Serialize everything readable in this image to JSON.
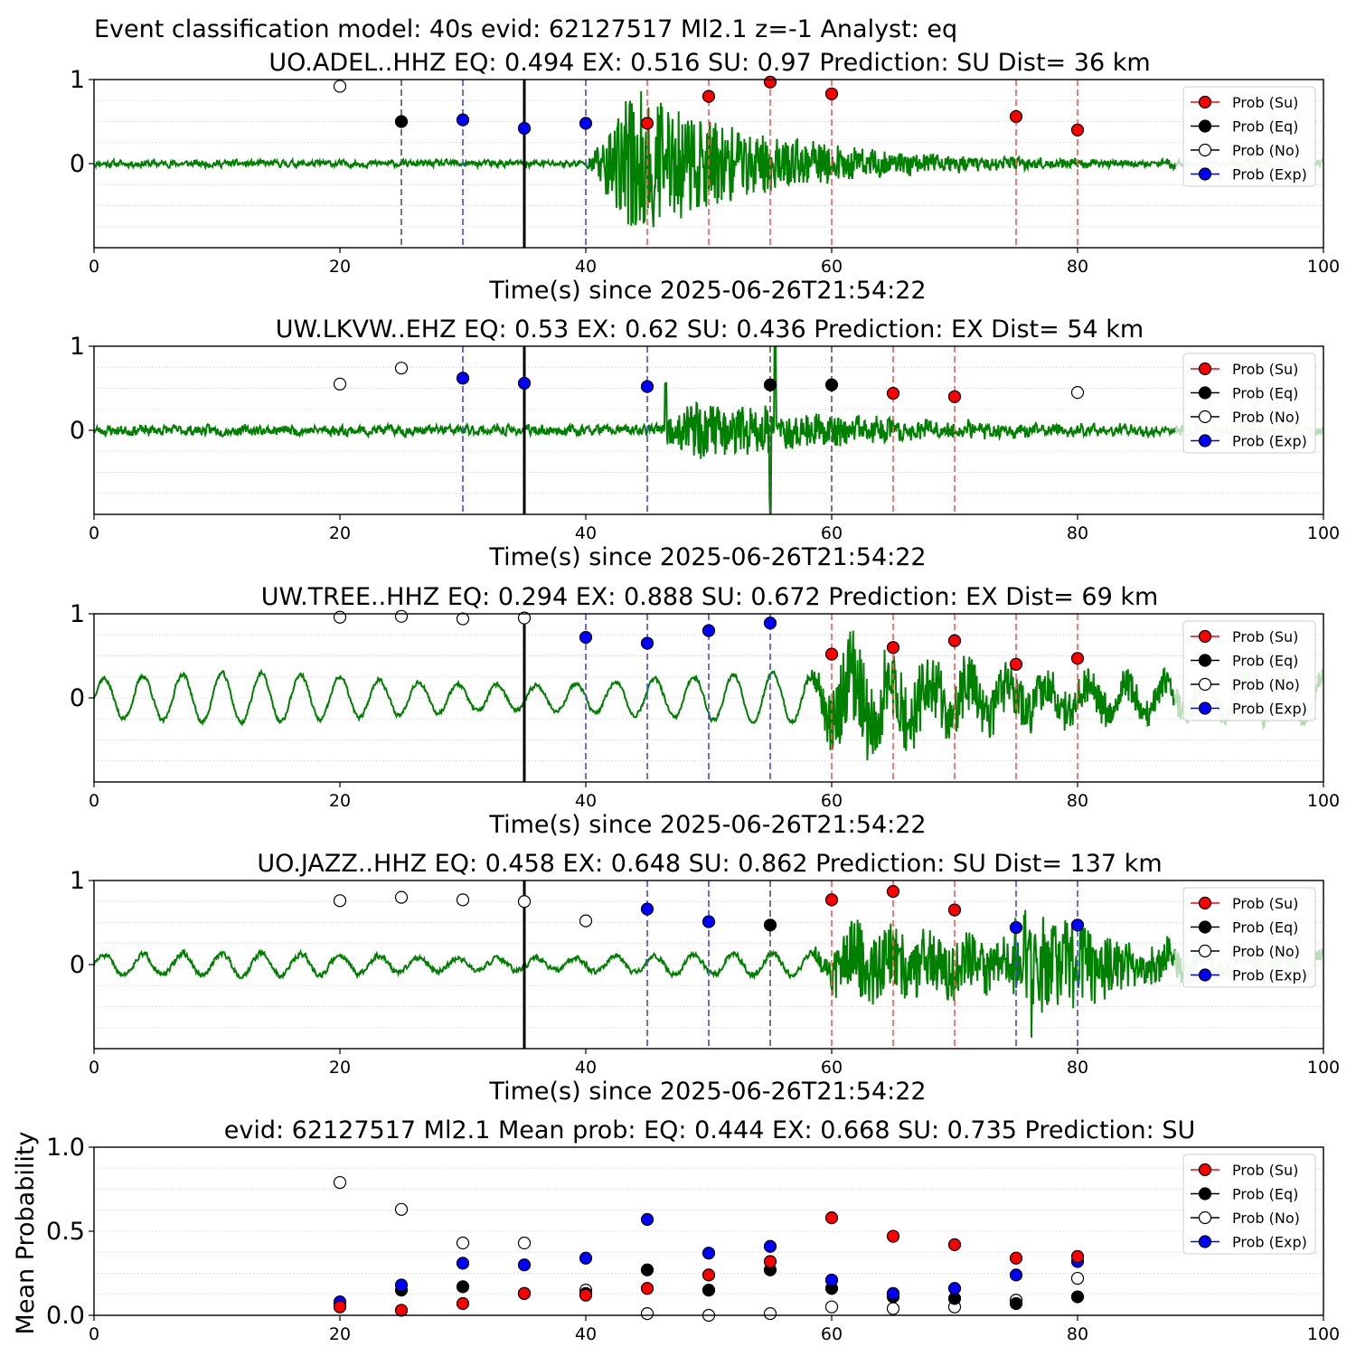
{
  "figure": {
    "suptitle": "Event classification model: 40s evid: 62127517 Ml2.1 z=-1 Analyst: eq"
  },
  "legend_labels": [
    "Prob (Su)",
    "Prob (Eq)",
    "Prob (No)",
    "Prob (Exp)"
  ],
  "colors": {
    "su": "#ff0000",
    "eq": "#000000",
    "no": "#ffffff",
    "exp": "#0000ff",
    "waveform": "#008000",
    "waveform_faded": "#b8dcb8",
    "line_exp": "#4444ff",
    "line_su": "#ff5555",
    "line_eq": "#555555"
  },
  "chart_data": [
    {
      "type": "line",
      "title": "UO.ADEL..HHZ   EQ: 0.494  EX: 0.516  SU: 0.97   Prediction: SU    Dist= 36 km",
      "xlabel": "Time(s) since 2025-06-26T21:54:22",
      "ylabel": "",
      "xlim": [
        0,
        100
      ],
      "ylim": [
        -1,
        1
      ],
      "xticks": [
        0,
        20,
        40,
        60,
        80,
        100
      ],
      "yticks": [
        0,
        1
      ],
      "grid": "horizontal dotted",
      "legend": "top-right",
      "waveform": {
        "noise": 0.06,
        "burst_start": 40,
        "burst_amp": 0.85,
        "burst_end": 67,
        "ondecay": 4,
        "decay": 11,
        "osc_amp": 0,
        "osc_period": 3.2,
        "faded_from": 88,
        "seed": 11
      },
      "origin_line": 35,
      "vlines": [
        {
          "x": 25,
          "cls": "eq"
        },
        {
          "x": 30,
          "cls": "exp"
        },
        {
          "x": 40,
          "cls": "exp"
        },
        {
          "x": 45,
          "cls": "su"
        },
        {
          "x": 50,
          "cls": "su"
        },
        {
          "x": 55,
          "cls": "su"
        },
        {
          "x": 60,
          "cls": "su"
        },
        {
          "x": 75,
          "cls": "su"
        },
        {
          "x": 80,
          "cls": "su"
        }
      ],
      "points": [
        {
          "x": 20,
          "y": 0.92,
          "cls": "no"
        },
        {
          "x": 25,
          "y": 0.5,
          "cls": "eq"
        },
        {
          "x": 30,
          "y": 0.52,
          "cls": "exp"
        },
        {
          "x": 35,
          "y": 0.42,
          "cls": "exp"
        },
        {
          "x": 40,
          "y": 0.48,
          "cls": "exp"
        },
        {
          "x": 45,
          "y": 0.48,
          "cls": "su"
        },
        {
          "x": 50,
          "y": 0.8,
          "cls": "su"
        },
        {
          "x": 55,
          "y": 0.97,
          "cls": "su"
        },
        {
          "x": 60,
          "y": 0.83,
          "cls": "su"
        },
        {
          "x": 75,
          "y": 0.56,
          "cls": "su"
        },
        {
          "x": 80,
          "y": 0.4,
          "cls": "su"
        }
      ]
    },
    {
      "type": "line",
      "title": "UW.LKVW..EHZ   EQ: 0.53  EX: 0.62  SU: 0.436   Prediction: EX    Dist= 54 km",
      "xlabel": "Time(s) since 2025-06-26T21:54:22",
      "ylabel": "",
      "xlim": [
        0,
        100
      ],
      "ylim": [
        -1,
        1
      ],
      "xticks": [
        0,
        20,
        40,
        60,
        80,
        100
      ],
      "yticks": [
        0,
        1
      ],
      "grid": "horizontal dotted",
      "legend": "top-right",
      "waveform": {
        "noise": 0.09,
        "burst_start": 45.5,
        "burst_amp": 0.32,
        "burst_end": 62,
        "ondecay": 3,
        "decay": 14,
        "osc_amp": 0,
        "osc_period": 3.2,
        "faded_from": 88,
        "seed": 23,
        "spikes": [
          {
            "x": 46.5,
            "amp": 0.6
          },
          {
            "x": 55.4,
            "amp": 0.95
          },
          {
            "x": 55.0,
            "amp": -0.9
          }
        ]
      },
      "origin_line": 35,
      "vlines": [
        {
          "x": 30,
          "cls": "exp"
        },
        {
          "x": 45,
          "cls": "exp"
        },
        {
          "x": 55,
          "cls": "eq"
        },
        {
          "x": 60,
          "cls": "eq"
        },
        {
          "x": 65,
          "cls": "su"
        },
        {
          "x": 70,
          "cls": "su"
        }
      ],
      "points": [
        {
          "x": 20,
          "y": 0.55,
          "cls": "no"
        },
        {
          "x": 25,
          "y": 0.74,
          "cls": "no"
        },
        {
          "x": 30,
          "y": 0.62,
          "cls": "exp"
        },
        {
          "x": 35,
          "y": 0.56,
          "cls": "exp"
        },
        {
          "x": 45,
          "y": 0.52,
          "cls": "exp"
        },
        {
          "x": 55,
          "y": 0.54,
          "cls": "eq"
        },
        {
          "x": 60,
          "y": 0.54,
          "cls": "eq"
        },
        {
          "x": 65,
          "y": 0.44,
          "cls": "su"
        },
        {
          "x": 70,
          "y": 0.4,
          "cls": "su"
        },
        {
          "x": 80,
          "y": 0.45,
          "cls": "no"
        }
      ]
    },
    {
      "type": "line",
      "title": "UW.TREE..HHZ   EQ: 0.294  EX: 0.888  SU: 0.672   Prediction: EX    Dist= 69 km",
      "xlabel": "Time(s) since 2025-06-26T21:54:22",
      "ylabel": "",
      "xlim": [
        0,
        100
      ],
      "ylim": [
        -1,
        1
      ],
      "xticks": [
        0,
        20,
        40,
        60,
        80,
        100
      ],
      "yticks": [
        0,
        1
      ],
      "grid": "horizontal dotted",
      "legend": "top-right",
      "waveform": {
        "noise": 0.04,
        "burst_start": 57.5,
        "burst_amp": 0.55,
        "burst_end": 90,
        "ondecay": 4,
        "decay": 20,
        "osc_amp": 0.28,
        "osc_period": 3.2,
        "faded_from": 88,
        "seed": 37
      },
      "origin_line": 35,
      "vlines": [
        {
          "x": 40,
          "cls": "exp"
        },
        {
          "x": 45,
          "cls": "exp"
        },
        {
          "x": 50,
          "cls": "exp"
        },
        {
          "x": 55,
          "cls": "exp"
        },
        {
          "x": 60,
          "cls": "su"
        },
        {
          "x": 65,
          "cls": "su"
        },
        {
          "x": 70,
          "cls": "su"
        },
        {
          "x": 75,
          "cls": "su"
        },
        {
          "x": 80,
          "cls": "su"
        }
      ],
      "points": [
        {
          "x": 20,
          "y": 0.96,
          "cls": "no"
        },
        {
          "x": 25,
          "y": 0.97,
          "cls": "no"
        },
        {
          "x": 30,
          "y": 0.94,
          "cls": "no"
        },
        {
          "x": 35,
          "y": 0.95,
          "cls": "no"
        },
        {
          "x": 40,
          "y": 0.72,
          "cls": "exp"
        },
        {
          "x": 45,
          "y": 0.65,
          "cls": "exp"
        },
        {
          "x": 50,
          "y": 0.8,
          "cls": "exp"
        },
        {
          "x": 55,
          "y": 0.89,
          "cls": "exp"
        },
        {
          "x": 60,
          "y": 0.52,
          "cls": "su"
        },
        {
          "x": 65,
          "y": 0.6,
          "cls": "su"
        },
        {
          "x": 70,
          "y": 0.68,
          "cls": "su"
        },
        {
          "x": 75,
          "y": 0.4,
          "cls": "su"
        },
        {
          "x": 80,
          "y": 0.47,
          "cls": "su"
        }
      ]
    },
    {
      "type": "line",
      "title": "UO.JAZZ..HHZ   EQ: 0.458  EX: 0.648  SU: 0.862   Prediction: SU    Dist= 137 km",
      "xlabel": "Time(s) since 2025-06-26T21:54:22",
      "ylabel": "",
      "xlim": [
        0,
        100
      ],
      "ylim": [
        -1,
        1
      ],
      "xticks": [
        0,
        20,
        40,
        60,
        80,
        100
      ],
      "yticks": [
        0,
        1
      ],
      "grid": "horizontal dotted",
      "legend": "top-right",
      "waveform": {
        "noise": 0.05,
        "burst_start": 58,
        "burst_amp": 0.45,
        "burst_end": 92,
        "ondecay": 4,
        "decay": 22,
        "osc_amp": 0.13,
        "osc_period": 3.2,
        "faded_from": 88,
        "seed": 51,
        "bursts": [
          {
            "start": 74,
            "amp": 0.55,
            "decay": 6
          }
        ]
      },
      "origin_line": 35,
      "vlines": [
        {
          "x": 45,
          "cls": "exp"
        },
        {
          "x": 50,
          "cls": "exp"
        },
        {
          "x": 55,
          "cls": "eq"
        },
        {
          "x": 60,
          "cls": "su"
        },
        {
          "x": 65,
          "cls": "su"
        },
        {
          "x": 70,
          "cls": "su"
        },
        {
          "x": 75,
          "cls": "exp"
        },
        {
          "x": 80,
          "cls": "exp"
        }
      ],
      "points": [
        {
          "x": 20,
          "y": 0.76,
          "cls": "no"
        },
        {
          "x": 25,
          "y": 0.8,
          "cls": "no"
        },
        {
          "x": 30,
          "y": 0.77,
          "cls": "no"
        },
        {
          "x": 35,
          "y": 0.75,
          "cls": "no"
        },
        {
          "x": 40,
          "y": 0.52,
          "cls": "no"
        },
        {
          "x": 45,
          "y": 0.66,
          "cls": "exp"
        },
        {
          "x": 50,
          "y": 0.51,
          "cls": "exp"
        },
        {
          "x": 55,
          "y": 0.47,
          "cls": "eq"
        },
        {
          "x": 60,
          "y": 0.77,
          "cls": "su"
        },
        {
          "x": 65,
          "y": 0.87,
          "cls": "su"
        },
        {
          "x": 70,
          "y": 0.65,
          "cls": "su"
        },
        {
          "x": 75,
          "y": 0.44,
          "cls": "exp"
        },
        {
          "x": 80,
          "y": 0.47,
          "cls": "exp"
        }
      ]
    },
    {
      "type": "scatter",
      "title": "evid: 62127517  Ml2.1   Mean prob:   EQ: 0.444  EX: 0.668  SU: 0.735   Prediction: SU",
      "xlabel": "",
      "ylabel": "Mean Probability",
      "xlim": [
        0,
        100
      ],
      "ylim": [
        0,
        1
      ],
      "xticks": [
        0,
        20,
        40,
        60,
        80,
        100
      ],
      "yticks": [
        0.0,
        0.5,
        1.0
      ],
      "ytick_labels": [
        "0.0",
        "0.5",
        "1.0"
      ],
      "grid": "horizontal dotted",
      "legend": "top-right",
      "x": [
        20,
        25,
        30,
        35,
        40,
        45,
        50,
        55,
        60,
        65,
        70,
        75,
        80
      ],
      "series": [
        {
          "name": "Prob (No)",
          "cls": "no",
          "values": [
            0.79,
            0.63,
            0.43,
            0.43,
            0.15,
            0.01,
            0.0,
            0.01,
            0.05,
            0.04,
            0.05,
            0.09,
            0.22
          ]
        },
        {
          "name": "Prob (Eq)",
          "cls": "eq",
          "values": [
            0.07,
            0.15,
            0.17,
            0.13,
            0.13,
            0.27,
            0.15,
            0.27,
            0.16,
            0.11,
            0.1,
            0.07,
            0.11
          ]
        },
        {
          "name": "Prob (Exp)",
          "cls": "exp",
          "values": [
            0.08,
            0.18,
            0.31,
            0.3,
            0.34,
            0.57,
            0.37,
            0.41,
            0.21,
            0.13,
            0.16,
            0.24,
            0.32
          ]
        },
        {
          "name": "Prob (Su)",
          "cls": "su",
          "values": [
            0.05,
            0.03,
            0.07,
            0.13,
            0.12,
            0.16,
            0.24,
            0.32,
            0.58,
            0.47,
            0.42,
            0.34,
            0.35
          ]
        }
      ]
    }
  ]
}
